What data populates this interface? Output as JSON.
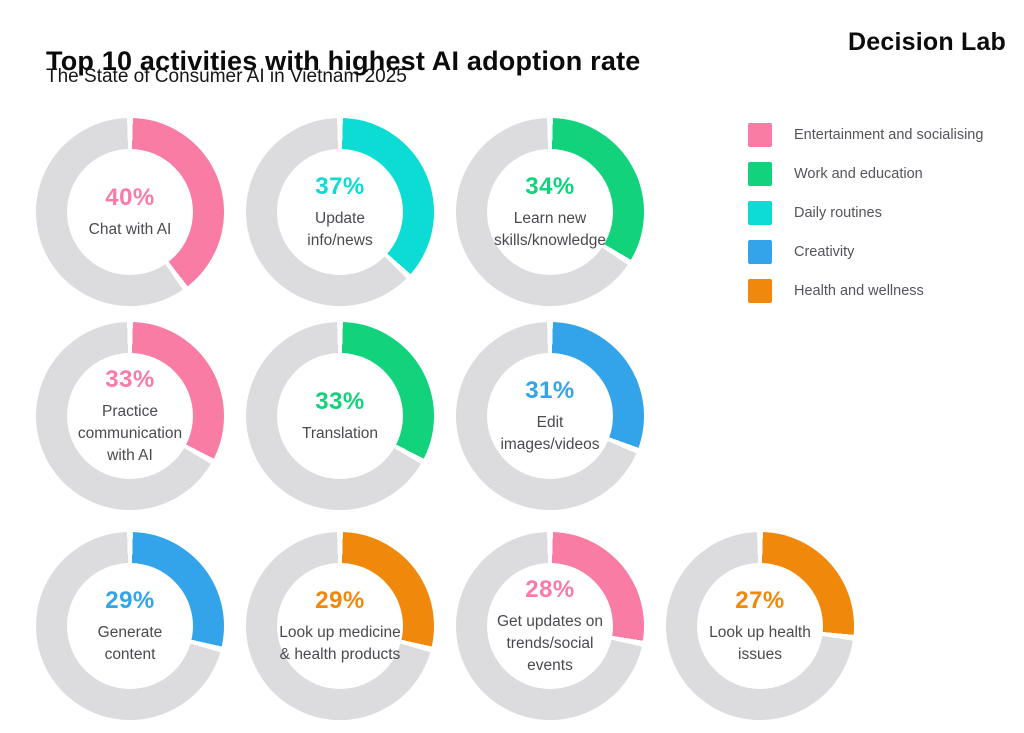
{
  "header": {
    "title": "Top 10 activities with highest AI adoption rate",
    "subtitle": "The State of Consumer AI in Vietnam 2025",
    "brand": "Decision Lab"
  },
  "colors": {
    "pink": "#F87CA4",
    "green": "#12D37C",
    "cyan": "#0CDCD3",
    "blue": "#33A4E9",
    "orange": "#F0890B",
    "track": "#DCDCDE"
  },
  "legend": [
    {
      "label": "Entertainment and socialising",
      "color_key": "pink"
    },
    {
      "label": "Work and education",
      "color_key": "green"
    },
    {
      "label": "Daily routines",
      "color_key": "cyan"
    },
    {
      "label": "Creativity",
      "color_key": "blue"
    },
    {
      "label": "Health and wellness",
      "color_key": "orange"
    }
  ],
  "chart_data": {
    "type": "pie",
    "subtype": "donut-grid",
    "title": "Top 10 activities with highest AI adoption rate",
    "subtitle": "The State of Consumer AI in Vietnam 2025",
    "unit": "%",
    "track_color_key": "track",
    "items": [
      {
        "label": "Chat with AI",
        "label_display": "Chat with AI",
        "value": 40,
        "value_label": "40%",
        "category": "Entertainment and socialising",
        "color_key": "pink",
        "row": 1
      },
      {
        "label": "Update info/news",
        "label_display": "Update\ninfo/news",
        "value": 37,
        "value_label": "37%",
        "category": "Daily routines",
        "color_key": "cyan",
        "row": 1
      },
      {
        "label": "Learn new skills/knowledge",
        "label_display": "Learn new\nskills/knowledge",
        "value": 34,
        "value_label": "34%",
        "category": "Work and education",
        "color_key": "green",
        "row": 1
      },
      {
        "label": "Practice communication with AI",
        "label_display": "Practice\ncommunication\nwith AI",
        "value": 33,
        "value_label": "33%",
        "category": "Entertainment and socialising",
        "color_key": "pink",
        "row": 2
      },
      {
        "label": "Translation",
        "label_display": "Translation",
        "value": 33,
        "value_label": "33%",
        "category": "Work and education",
        "color_key": "green",
        "row": 2
      },
      {
        "label": "Edit images/videos",
        "label_display": "Edit\nimages/videos",
        "value": 31,
        "value_label": "31%",
        "category": "Creativity",
        "color_key": "blue",
        "row": 2
      },
      {
        "label": "Generate content",
        "label_display": "Generate\ncontent",
        "value": 29,
        "value_label": "29%",
        "category": "Creativity",
        "color_key": "blue",
        "row": 3
      },
      {
        "label": "Look up medicine & health products",
        "label_display": "Look up medicine\n& health products",
        "value": 29,
        "value_label": "29%",
        "category": "Health and wellness",
        "color_key": "orange",
        "row": 3
      },
      {
        "label": "Get updates on trends/social events",
        "label_display": "Get updates on\ntrends/social\nevents",
        "value": 28,
        "value_label": "28%",
        "category": "Entertainment and socialising",
        "color_key": "pink",
        "row": 3
      },
      {
        "label": "Look up health issues",
        "label_display": "Look up health\nissues",
        "value": 27,
        "value_label": "27%",
        "category": "Health and wellness",
        "color_key": "orange",
        "row": 3
      }
    ]
  }
}
